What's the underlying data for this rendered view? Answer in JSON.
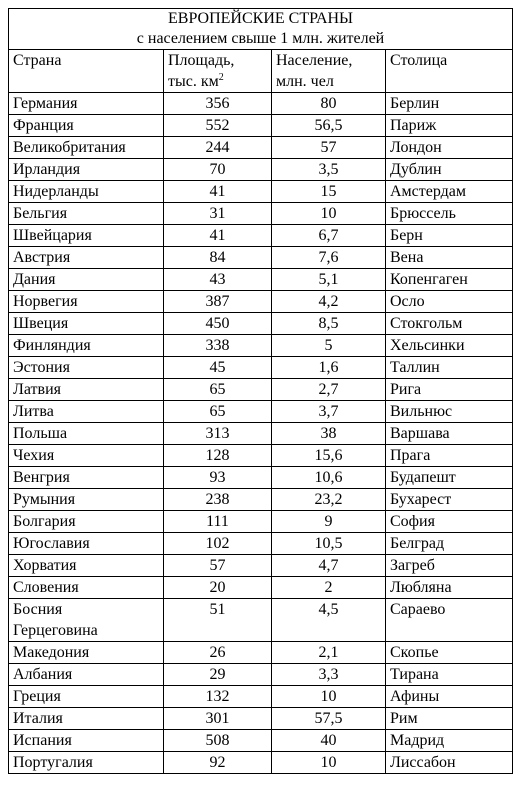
{
  "table": {
    "title": "ЕВРОПЕЙСКИЕ СТРАНЫ",
    "subtitle": "с населением свыше 1 млн. жителей",
    "headers": {
      "country": "Страна",
      "area_line1": "Площадь,",
      "area_line2": "тыс. км",
      "area_sup": "2",
      "population_line1": "Население,",
      "population_line2": "млн. чел",
      "capital": "Столица"
    },
    "rows": [
      {
        "country": "Германия",
        "area": "356",
        "population": "80",
        "capital": "Берлин"
      },
      {
        "country": "Франция",
        "area": "552",
        "population": "56,5",
        "capital": "Париж"
      },
      {
        "country": "Великобритания",
        "area": "244",
        "population": "57",
        "capital": "Лондон"
      },
      {
        "country": "Ирландия",
        "area": "70",
        "population": "3,5",
        "capital": "Дублин"
      },
      {
        "country": "Нидерланды",
        "area": "41",
        "population": "15",
        "capital": "Амстердам"
      },
      {
        "country": "Бельгия",
        "area": "31",
        "population": "10",
        "capital": "Брюссель"
      },
      {
        "country": "Швейцария",
        "area": "41",
        "population": "6,7",
        "capital": "Берн"
      },
      {
        "country": "Австрия",
        "area": "84",
        "population": "7,6",
        "capital": "Вена"
      },
      {
        "country": "Дания",
        "area": "43",
        "population": "5,1",
        "capital": "Копенгаген"
      },
      {
        "country": "Норвегия",
        "area": "387",
        "population": "4,2",
        "capital": "Осло"
      },
      {
        "country": "Швеция",
        "area": "450",
        "population": "8,5",
        "capital": "Стокгольм"
      },
      {
        "country": "Финляндия",
        "area": "338",
        "population": "5",
        "capital": "Хельсинки"
      },
      {
        "country": "Эстония",
        "area": "45",
        "population": "1,6",
        "capital": "Таллин"
      },
      {
        "country": "Латвия",
        "area": "65",
        "population": "2,7",
        "capital": "Рига"
      },
      {
        "country": "Литва",
        "area": "65",
        "population": "3,7",
        "capital": "Вильнюс"
      },
      {
        "country": "Польша",
        "area": "313",
        "population": "38",
        "capital": "Варшава"
      },
      {
        "country": "Чехия",
        "area": "128",
        "population": "15,6",
        "capital": "Прага"
      },
      {
        "country": "Венгрия",
        "area": "93",
        "population": "10,6",
        "capital": "Будапешт"
      },
      {
        "country": "Румыния",
        "area": "238",
        "population": "23,2",
        "capital": "Бухарест"
      },
      {
        "country": "Болгария",
        "area": "111",
        "population": "9",
        "capital": "София"
      },
      {
        "country": "Югославия",
        "area": "102",
        "population": "10,5",
        "capital": "Белград"
      },
      {
        "country": "Хорватия",
        "area": "57",
        "population": "4,7",
        "capital": "Загреб"
      },
      {
        "country": "Словения",
        "area": "20",
        "population": "2",
        "capital": "Любляна"
      },
      {
        "country": "Босния",
        "country_line2": "Герцеговина",
        "area": "51",
        "population": "4,5",
        "capital": "Сараево"
      },
      {
        "country": "Македония",
        "area": "26",
        "population": "2,1",
        "capital": "Скопье"
      },
      {
        "country": "Албания",
        "area": "29",
        "population": "3,3",
        "capital": "Тирана"
      },
      {
        "country": "Греция",
        "area": "132",
        "population": "10",
        "capital": "Афины"
      },
      {
        "country": "Италия",
        "area": "301",
        "population": "57,5",
        "capital": "Рим"
      },
      {
        "country": "Испания",
        "area": "508",
        "population": "40",
        "capital": "Мадрид"
      },
      {
        "country": "Португалия",
        "area": "92",
        "population": "10",
        "capital": "Лиссабон"
      }
    ]
  }
}
